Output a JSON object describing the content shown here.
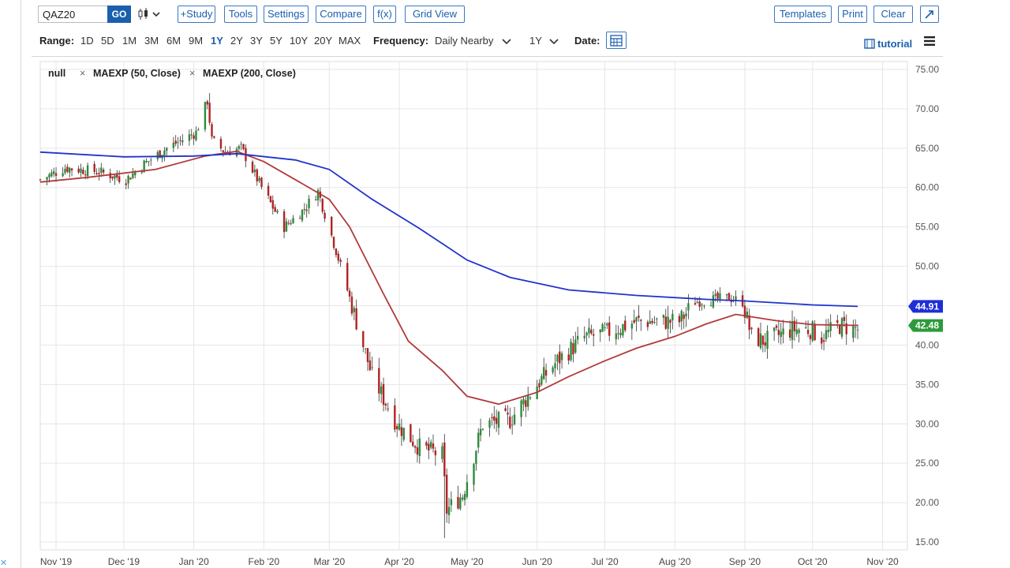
{
  "toolbar": {
    "symbol": "QAZ20",
    "go_label": "GO",
    "chart_type_icon": "candlestick-icon",
    "buttons": [
      "+Study",
      "Tools",
      "Settings",
      "Compare",
      "f(x)",
      "Grid View"
    ],
    "right_buttons": [
      "Templates",
      "Print",
      "Clear"
    ],
    "expand_icon": "expand-arrow-icon"
  },
  "range_bar": {
    "label": "Range:",
    "ranges": [
      "1D",
      "5D",
      "1M",
      "3M",
      "6M",
      "9M",
      "1Y",
      "2Y",
      "3Y",
      "5Y",
      "10Y",
      "20Y",
      "MAX"
    ],
    "active_range": "1Y",
    "frequency_label": "Frequency:",
    "frequency_value": "Daily Nearby",
    "period_value": "1Y",
    "date_label": "Date:",
    "tutorial_label": "tutorial",
    "menu_icon": "hamburger-menu-icon"
  },
  "legend": {
    "items": [
      "null",
      "MAEXP (50, Close)",
      "MAEXP (200, Close)"
    ],
    "remove_symbol": "×"
  },
  "colors": {
    "accent": "#1a5fad",
    "up_candle": "#2e8b3a",
    "down_candle": "#b22222",
    "ma50": "#b03a3a",
    "ma200": "#2233cc",
    "ma200_label_bg": "#1f2fd6",
    "last_price_label_bg": "#2e9a3a"
  },
  "chart_data": {
    "type": "candlestick",
    "title": "",
    "ylim": [
      14,
      76
    ],
    "y_ticks": [
      "75.00",
      "70.00",
      "65.00",
      "60.00",
      "55.00",
      "50.00",
      "45.00",
      "40.00",
      "35.00",
      "30.00",
      "25.00",
      "20.00",
      "15.00"
    ],
    "y_tick_values": [
      75,
      70,
      65,
      60,
      55,
      50,
      45,
      40,
      35,
      30,
      25,
      20,
      15
    ],
    "x_ticks": [
      "Nov '19",
      "Dec '19",
      "Jan '20",
      "Feb '20",
      "Mar '20",
      "Apr '20",
      "May '20",
      "Jun '20",
      "Jul '20",
      "Aug '20",
      "Sep '20",
      "Oct '20",
      "Nov '20"
    ],
    "x_tick_dates": [
      "2019-11-01",
      "2019-12-01",
      "2020-01-01",
      "2020-02-01",
      "2020-03-01",
      "2020-04-01",
      "2020-05-01",
      "2020-06-01",
      "2020-07-01",
      "2020-08-01",
      "2020-09-01",
      "2020-10-01",
      "2020-11-01"
    ],
    "x_range": [
      "2019-10-25",
      "2020-11-12"
    ],
    "grid": true,
    "price_anchors": {
      "dates": [
        "2019-10-25",
        "2019-11-05",
        "2019-11-20",
        "2019-12-02",
        "2019-12-10",
        "2019-12-20",
        "2020-01-02",
        "2020-01-07",
        "2020-01-09",
        "2020-01-15",
        "2020-01-22",
        "2020-01-31",
        "2020-02-10",
        "2020-02-18",
        "2020-02-25",
        "2020-03-04",
        "2020-03-10",
        "2020-03-20",
        "2020-03-31",
        "2020-04-10",
        "2020-04-20",
        "2020-04-22",
        "2020-04-29",
        "2020-05-08",
        "2020-05-20",
        "2020-06-01",
        "2020-06-10",
        "2020-06-22",
        "2020-07-01",
        "2020-07-15",
        "2020-08-03",
        "2020-08-10",
        "2020-08-25",
        "2020-08-31",
        "2020-09-04",
        "2020-09-10",
        "2020-09-22",
        "2020-09-30",
        "2020-10-05",
        "2020-10-13",
        "2020-10-21"
      ],
      "close": [
        61,
        62.5,
        62,
        61,
        63,
        65,
        67,
        71,
        66,
        64.5,
        65,
        60,
        55,
        57,
        59.5,
        52,
        46,
        36,
        30,
        27,
        26,
        19,
        21,
        30,
        30.5,
        35,
        38,
        41,
        41.5,
        43,
        43,
        45.5,
        46,
        45.5,
        41,
        40.5,
        42,
        42,
        41,
        42.5,
        42
      ]
    },
    "ohlc_extremes": {
      "high": 72,
      "low": 15.5,
      "high_date": "2020-01-08",
      "low_date": "2020-04-21"
    },
    "series": [
      {
        "name": "MAEXP (50, Close)",
        "dates": [
          "2019-10-25",
          "2019-11-15",
          "2019-12-15",
          "2020-01-06",
          "2020-01-20",
          "2020-02-01",
          "2020-02-15",
          "2020-03-01",
          "2020-03-10",
          "2020-03-25",
          "2020-04-05",
          "2020-04-20",
          "2020-05-01",
          "2020-05-15",
          "2020-06-01",
          "2020-06-15",
          "2020-07-01",
          "2020-07-15",
          "2020-08-01",
          "2020-08-15",
          "2020-08-28",
          "2020-09-15",
          "2020-10-01",
          "2020-10-21"
        ],
        "values": [
          60.7,
          61.3,
          62.3,
          64,
          64.6,
          63.3,
          61,
          58.5,
          55,
          46.5,
          40.5,
          36.8,
          33.5,
          32.5,
          34,
          36,
          38,
          39.6,
          41.1,
          42.7,
          43.9,
          43.1,
          42.6,
          42.5
        ]
      },
      {
        "name": "MAEXP (200, Close)",
        "dates": [
          "2019-10-25",
          "2019-12-01",
          "2020-01-01",
          "2020-01-20",
          "2020-02-15",
          "2020-03-01",
          "2020-03-20",
          "2020-04-10",
          "2020-05-01",
          "2020-05-20",
          "2020-06-15",
          "2020-07-15",
          "2020-08-15",
          "2020-09-01",
          "2020-10-01",
          "2020-10-21"
        ],
        "values": [
          64.5,
          63.9,
          64,
          64.3,
          63.5,
          62.3,
          58.5,
          54.8,
          50.8,
          48.6,
          47,
          46.3,
          45.8,
          45.6,
          45.1,
          44.91
        ]
      }
    ],
    "last_labels": {
      "ma200": "44.91",
      "price": "42.48"
    }
  }
}
